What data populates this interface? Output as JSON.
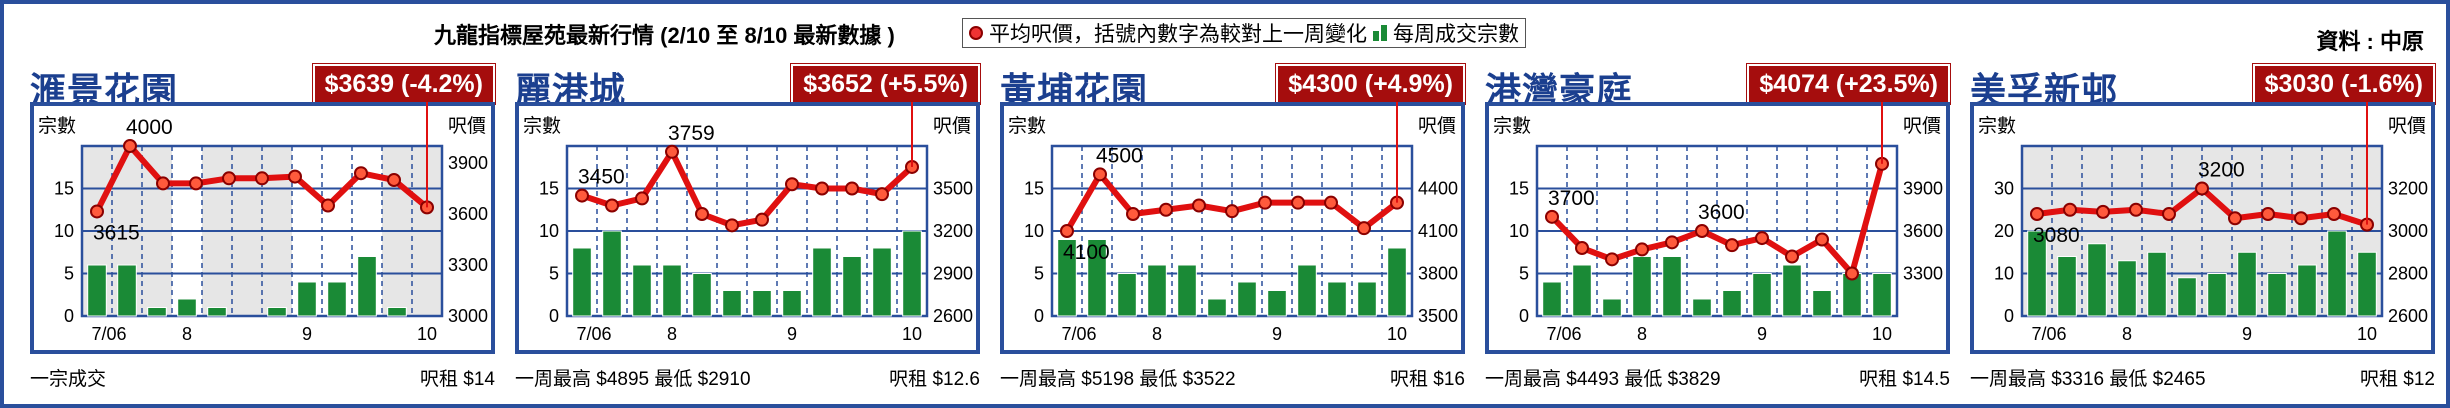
{
  "header": {
    "title": "九龍指標屋苑最新行情 (2/10 至 8/10 最新數據 )",
    "legend_price": "平均呎價，括號內數字為較對上一周變化",
    "legend_volume": "每周成交宗數",
    "source": "資料 : 中原"
  },
  "colors": {
    "frame": "#2a4f9c",
    "name": "#1b3f8f",
    "badge": "#a50d0d",
    "line": "#e01010",
    "bar": "#1a8a36",
    "shade": "#e6e6e6"
  },
  "axis_titles": {
    "left": "宗數",
    "right": "呎價"
  },
  "panels": [
    {
      "name": "滙景花園",
      "badge": "$3639 (-4.2%)",
      "foot_left": "一宗成交",
      "foot_right": "呎租 $14"
    },
    {
      "name": "麗港城",
      "badge": "$3652 (+5.5%)",
      "foot_left": "一周最高 $4895 最低 $2910",
      "foot_right": "呎租 $12.6"
    },
    {
      "name": "黃埔花園",
      "badge": "$4300 (+4.9%)",
      "foot_left": "一周最高 $5198 最低 $3522",
      "foot_right": "呎租 $16"
    },
    {
      "name": "港灣豪庭",
      "badge": "$4074 (+23.5%)",
      "foot_left": "一周最高 $4493 最低 $3829",
      "foot_right": "呎租 $14.5"
    },
    {
      "name": "美孚新邨",
      "badge": "$3030 (-1.6%)",
      "foot_left": "一周最高 $3316 最低 $2465",
      "foot_right": "呎租 $12"
    }
  ],
  "chart_data": [
    {
      "type": "bar+line",
      "title": "滙景花園",
      "x_ticks": [
        "7/06",
        "8",
        "9",
        "10"
      ],
      "y_left": {
        "label": "宗數",
        "ticks": [
          0,
          5,
          10,
          15
        ],
        "range": [
          0,
          20
        ]
      },
      "y_right": {
        "label": "呎價",
        "ticks": [
          3000,
          3300,
          3600,
          3900
        ],
        "range": [
          3000,
          4000
        ]
      },
      "shaded_weeks": [
        1,
        2,
        3,
        5,
        6,
        7,
        11,
        12
      ],
      "series": [
        {
          "name": "每周成交宗數",
          "kind": "bar",
          "values": [
            6,
            6,
            1,
            2,
            1,
            0,
            1,
            4,
            4,
            7,
            1
          ]
        },
        {
          "name": "平均呎價",
          "kind": "line",
          "values": [
            3615,
            4000,
            3780,
            3780,
            3810,
            3810,
            3820,
            3650,
            3840,
            3800,
            3639
          ]
        }
      ],
      "point_labels": [
        {
          "index": 0,
          "text": "3615"
        },
        {
          "index": 1,
          "text": "4000"
        }
      ]
    },
    {
      "type": "bar+line",
      "title": "麗港城",
      "x_ticks": [
        "7/06",
        "8",
        "9",
        "10"
      ],
      "y_left": {
        "label": "宗數",
        "ticks": [
          0,
          5,
          10,
          15
        ],
        "range": [
          0,
          20
        ]
      },
      "y_right": {
        "label": "呎價",
        "ticks": [
          2600,
          2900,
          3200,
          3500
        ],
        "range": [
          2600,
          3800
        ]
      },
      "shaded_weeks": [],
      "series": [
        {
          "name": "每周成交宗數",
          "kind": "bar",
          "values": [
            8,
            10,
            6,
            6,
            5,
            3,
            3,
            3,
            8,
            7,
            8,
            10
          ]
        },
        {
          "name": "平均呎價",
          "kind": "line",
          "values": [
            3450,
            3380,
            3430,
            3759,
            3320,
            3240,
            3280,
            3530,
            3500,
            3500,
            3460,
            3652
          ]
        }
      ],
      "point_labels": [
        {
          "index": 0,
          "text": "3450"
        },
        {
          "index": 3,
          "text": "3759"
        }
      ]
    },
    {
      "type": "bar+line",
      "title": "黃埔花園",
      "x_ticks": [
        "7/06",
        "8",
        "9",
        "10"
      ],
      "y_left": {
        "label": "宗數",
        "ticks": [
          0,
          5,
          10,
          15
        ],
        "range": [
          0,
          20
        ]
      },
      "y_right": {
        "label": "呎價",
        "ticks": [
          3500,
          3800,
          4100,
          4400
        ],
        "range": [
          3500,
          4700
        ]
      },
      "shaded_weeks": [],
      "series": [
        {
          "name": "每周成交宗數",
          "kind": "bar",
          "values": [
            9,
            9,
            5,
            6,
            6,
            2,
            4,
            3,
            6,
            4,
            4,
            8
          ]
        },
        {
          "name": "平均呎價",
          "kind": "line",
          "values": [
            4100,
            4500,
            4220,
            4250,
            4280,
            4240,
            4300,
            4300,
            4300,
            4120,
            4300
          ]
        }
      ],
      "point_labels": [
        {
          "index": 0,
          "text": "4100"
        },
        {
          "index": 1,
          "text": "4500"
        }
      ]
    },
    {
      "type": "bar+line",
      "title": "港灣豪庭",
      "x_ticks": [
        "7/06",
        "8",
        "9",
        "10"
      ],
      "y_left": {
        "label": "宗數",
        "ticks": [
          0,
          5,
          10,
          15
        ],
        "range": [
          0,
          20
        ]
      },
      "y_right": {
        "label": "呎價",
        "ticks": [
          3300,
          3600,
          3900
        ],
        "range": [
          3000,
          4200
        ]
      },
      "shaded_weeks": [],
      "series": [
        {
          "name": "每周成交宗數",
          "kind": "bar",
          "values": [
            4,
            6,
            2,
            7,
            7,
            2,
            3,
            5,
            6,
            3,
            5,
            5
          ]
        },
        {
          "name": "平均呎價",
          "kind": "line",
          "values": [
            3700,
            3480,
            3400,
            3470,
            3520,
            3600,
            3500,
            3550,
            3420,
            3540,
            3300,
            4074
          ]
        }
      ],
      "point_labels": [
        {
          "index": 0,
          "text": "3700"
        },
        {
          "index": 5,
          "text": "3600"
        }
      ]
    },
    {
      "type": "bar+line",
      "title": "美孚新邨",
      "x_ticks": [
        "7/06",
        "8",
        "9",
        "10"
      ],
      "y_left": {
        "label": "宗數",
        "ticks": [
          0,
          10,
          20,
          30
        ],
        "range": [
          0,
          40
        ]
      },
      "y_right": {
        "label": "呎價",
        "ticks": [
          2600,
          2800,
          3000,
          3200
        ],
        "range": [
          2600,
          3400
        ]
      },
      "shaded_weeks": [
        1,
        2,
        3,
        4,
        5,
        6,
        7,
        8,
        9,
        10,
        11,
        12
      ],
      "series": [
        {
          "name": "每周成交宗數",
          "kind": "bar",
          "values": [
            20,
            14,
            17,
            13,
            15,
            9,
            10,
            15,
            10,
            12,
            20,
            15
          ]
        },
        {
          "name": "平均呎價",
          "kind": "line",
          "values": [
            3080,
            3100,
            3090,
            3100,
            3080,
            3200,
            3060,
            3080,
            3060,
            3080,
            3030
          ]
        }
      ],
      "point_labels": [
        {
          "index": 0,
          "text": "3080"
        },
        {
          "index": 5,
          "text": "3200"
        }
      ]
    }
  ]
}
